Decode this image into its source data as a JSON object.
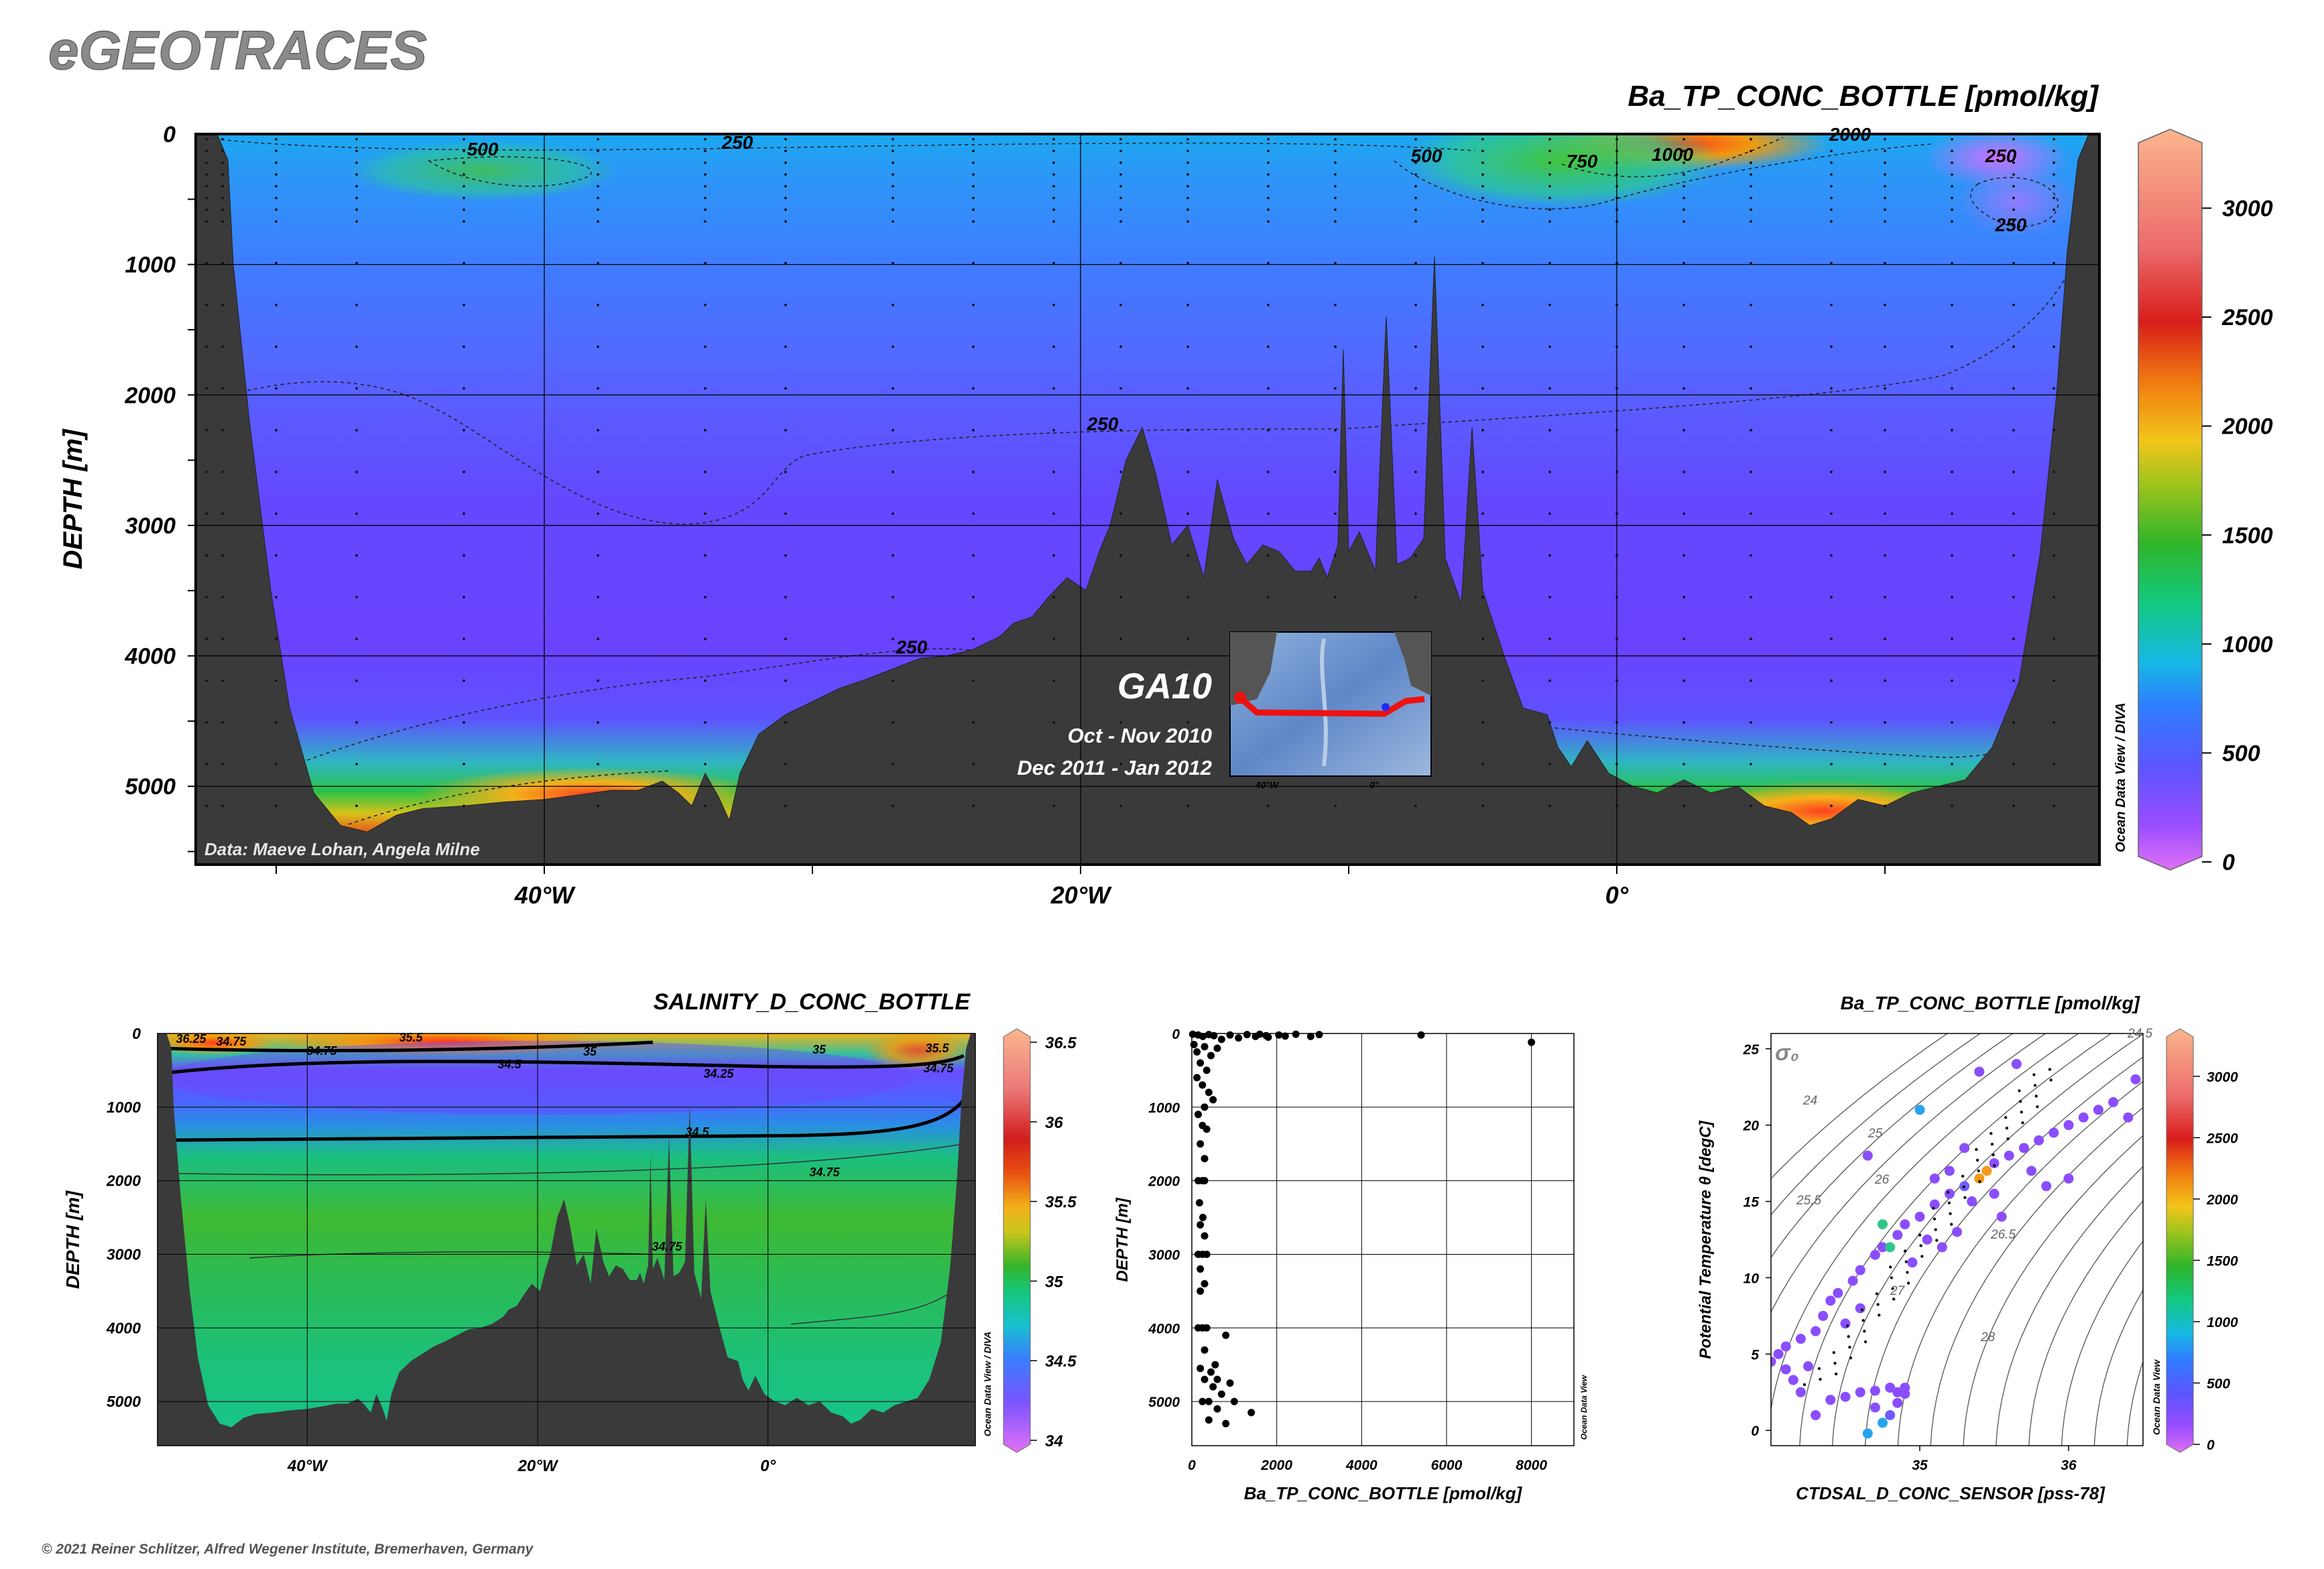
{
  "brand": "eGEOTRACES",
  "copyright": "© 2021 Reiner Schlitzer, Alfred Wegener Institute, Bremerhaven, Germany",
  "colors": {
    "land": "#3a3a3a",
    "background": "#ffffff",
    "grid": "#000000",
    "brand_text": "#8a8a8a",
    "track": "#ee1111"
  },
  "chart_data": [
    {
      "type": "heatmap",
      "title": "Ba_TP_CONC_BOTTLE [pmol/kg]",
      "xlabel": "",
      "ylabel": "DEPTH [m]",
      "x_ticks": [
        "40°W",
        "20°W",
        "0°"
      ],
      "y_ticks": [
        "0",
        "1000",
        "2000",
        "3000",
        "4000",
        "5000"
      ],
      "xlim": [
        -53,
        18
      ],
      "ylim": [
        0,
        5600
      ],
      "grid": true,
      "colorbar": {
        "min": 0,
        "max": 3300,
        "ticks": [
          "0",
          "500",
          "1000",
          "1500",
          "2000",
          "2500",
          "3000"
        ]
      },
      "side_label": "Ocean Data View / DIVA",
      "contour_labels": [
        "500",
        "250",
        "500",
        "750",
        "1000",
        "2000",
        "250",
        "250",
        "250",
        "250"
      ],
      "inset": {
        "cruise": "GA10",
        "dates": [
          "Oct - Nov 2010",
          "Dec 2011 - Jan 2012"
        ],
        "lon_ticks": [
          "40°W",
          "0°"
        ]
      },
      "credit": "Data: Maeve Lohan, Angela Milne"
    },
    {
      "type": "heatmap",
      "title": "SALINITY_D_CONC_BOTTLE",
      "xlabel": "",
      "ylabel": "DEPTH [m]",
      "x_ticks": [
        "40°W",
        "20°W",
        "0°"
      ],
      "y_ticks": [
        "0",
        "1000",
        "2000",
        "3000",
        "4000",
        "5000"
      ],
      "xlim": [
        -53,
        18
      ],
      "ylim": [
        0,
        5600
      ],
      "grid": true,
      "colorbar": {
        "min": 34,
        "max": 36.5,
        "ticks": [
          "34",
          "34.5",
          "35",
          "35.5",
          "36",
          "36.5"
        ]
      },
      "side_label": "Ocean Data View / DIVA",
      "contour_labels": [
        "36.25",
        "34.75",
        "35.5",
        "34.75",
        "35",
        "34.5",
        "34.25",
        "35",
        "35.5",
        "34.75",
        "34.5",
        "34.75",
        "34.75"
      ]
    },
    {
      "type": "scatter",
      "title": "",
      "xlabel": "Ba_TP_CONC_BOTTLE [pmol/kg]",
      "ylabel": "DEPTH [m]",
      "x_ticks": [
        "0",
        "2000",
        "4000",
        "6000",
        "8000"
      ],
      "y_ticks": [
        "0",
        "1000",
        "2000",
        "3000",
        "4000",
        "5000"
      ],
      "xlim": [
        0,
        9000
      ],
      "ylim": [
        0,
        5600
      ],
      "grid": true,
      "side_label": "Ocean Data View",
      "points": [
        {
          "x": 20,
          "y": 10
        },
        {
          "x": 150,
          "y": 20
        },
        {
          "x": 260,
          "y": 40
        },
        {
          "x": 400,
          "y": 15
        },
        {
          "x": 520,
          "y": 30
        },
        {
          "x": 700,
          "y": 80
        },
        {
          "x": 900,
          "y": 20
        },
        {
          "x": 1100,
          "y": 60
        },
        {
          "x": 1300,
          "y": 15
        },
        {
          "x": 1500,
          "y": 40
        },
        {
          "x": 1600,
          "y": 10
        },
        {
          "x": 1750,
          "y": 30
        },
        {
          "x": 1800,
          "y": 50
        },
        {
          "x": 2050,
          "y": 20
        },
        {
          "x": 2200,
          "y": 35
        },
        {
          "x": 2450,
          "y": 10
        },
        {
          "x": 2800,
          "y": 40
        },
        {
          "x": 3000,
          "y": 15
        },
        {
          "x": 5400,
          "y": 20
        },
        {
          "x": 8000,
          "y": 120
        },
        {
          "x": 50,
          "y": 150
        },
        {
          "x": 120,
          "y": 250
        },
        {
          "x": 300,
          "y": 180
        },
        {
          "x": 450,
          "y": 300
        },
        {
          "x": 600,
          "y": 200
        },
        {
          "x": 200,
          "y": 400
        },
        {
          "x": 350,
          "y": 500
        },
        {
          "x": 120,
          "y": 600
        },
        {
          "x": 250,
          "y": 700
        },
        {
          "x": 400,
          "y": 800
        },
        {
          "x": 500,
          "y": 900
        },
        {
          "x": 300,
          "y": 1000
        },
        {
          "x": 150,
          "y": 1100
        },
        {
          "x": 250,
          "y": 1250
        },
        {
          "x": 350,
          "y": 1300
        },
        {
          "x": 200,
          "y": 1500
        },
        {
          "x": 300,
          "y": 1700
        },
        {
          "x": 150,
          "y": 2000
        },
        {
          "x": 250,
          "y": 2000
        },
        {
          "x": 300,
          "y": 2000
        },
        {
          "x": 180,
          "y": 2300
        },
        {
          "x": 260,
          "y": 2500
        },
        {
          "x": 200,
          "y": 2600
        },
        {
          "x": 300,
          "y": 2750
        },
        {
          "x": 150,
          "y": 3000
        },
        {
          "x": 250,
          "y": 3000
        },
        {
          "x": 350,
          "y": 3000
        },
        {
          "x": 200,
          "y": 3200
        },
        {
          "x": 300,
          "y": 3400
        },
        {
          "x": 200,
          "y": 3500
        },
        {
          "x": 150,
          "y": 4000
        },
        {
          "x": 250,
          "y": 4000
        },
        {
          "x": 350,
          "y": 4000
        },
        {
          "x": 800,
          "y": 4100
        },
        {
          "x": 300,
          "y": 4300
        },
        {
          "x": 550,
          "y": 4500
        },
        {
          "x": 200,
          "y": 4550
        },
        {
          "x": 450,
          "y": 4600
        },
        {
          "x": 600,
          "y": 4700
        },
        {
          "x": 300,
          "y": 4700
        },
        {
          "x": 900,
          "y": 4750
        },
        {
          "x": 500,
          "y": 4800
        },
        {
          "x": 700,
          "y": 4900
        },
        {
          "x": 400,
          "y": 5000
        },
        {
          "x": 250,
          "y": 5000
        },
        {
          "x": 1000,
          "y": 5000
        },
        {
          "x": 600,
          "y": 5100
        },
        {
          "x": 1400,
          "y": 5150
        },
        {
          "x": 400,
          "y": 5250
        },
        {
          "x": 800,
          "y": 5300
        }
      ]
    },
    {
      "type": "scatter",
      "title": "Ba_TP_CONC_BOTTLE [pmol/kg]",
      "xlabel": "CTDSAL_D_CONC_SENSOR [pss-78]",
      "ylabel": "Potential Temperature θ [degC]",
      "x_ticks": [
        "35",
        "36"
      ],
      "y_ticks": [
        "0",
        "5",
        "10",
        "15",
        "20",
        "25"
      ],
      "xlim": [
        34.0,
        36.5
      ],
      "ylim": [
        -1,
        26
      ],
      "grid": false,
      "colorbar": {
        "min": 0,
        "max": 3300,
        "ticks": [
          "0",
          "500",
          "1000",
          "1500",
          "2000",
          "2500",
          "3000"
        ]
      },
      "side_label": "Ocean Data View",
      "isopycnal_symbol": "σ₀",
      "isopycnal_labels": [
        "24",
        "24.5",
        "25",
        "25.5",
        "26",
        "26.5",
        "27",
        "28"
      ],
      "points": [
        {
          "x": 34.3,
          "y": 1.0,
          "c": 250
        },
        {
          "x": 34.4,
          "y": 2.0,
          "c": 300
        },
        {
          "x": 34.5,
          "y": 2.2,
          "c": 300
        },
        {
          "x": 34.6,
          "y": 2.5,
          "c": 280
        },
        {
          "x": 34.7,
          "y": 2.6,
          "c": 260
        },
        {
          "x": 34.8,
          "y": 2.8,
          "c": 300
        },
        {
          "x": 34.9,
          "y": 2.4,
          "c": 250
        },
        {
          "x": 34.85,
          "y": 1.8,
          "c": 280
        },
        {
          "x": 34.7,
          "y": 1.5,
          "c": 300
        },
        {
          "x": 34.8,
          "y": 1.0,
          "c": 600
        },
        {
          "x": 34.85,
          "y": 2.5,
          "c": 320
        },
        {
          "x": 34.9,
          "y": 2.8,
          "c": 280
        },
        {
          "x": 34.2,
          "y": 2.5,
          "c": 200
        },
        {
          "x": 34.15,
          "y": 3.3,
          "c": 300
        },
        {
          "x": 34.1,
          "y": 4.0,
          "c": 300
        },
        {
          "x": 34.0,
          "y": 4.5,
          "c": 200
        },
        {
          "x": 34.05,
          "y": 5.0,
          "c": 250
        },
        {
          "x": 34.1,
          "y": 5.5,
          "c": 300
        },
        {
          "x": 34.2,
          "y": 6.0,
          "c": 250
        },
        {
          "x": 34.3,
          "y": 6.5,
          "c": 300
        },
        {
          "x": 34.35,
          "y": 7.5,
          "c": 280
        },
        {
          "x": 34.4,
          "y": 8.5,
          "c": 300
        },
        {
          "x": 34.45,
          "y": 9.0,
          "c": 350
        },
        {
          "x": 34.55,
          "y": 9.8,
          "c": 300
        },
        {
          "x": 34.6,
          "y": 10.5,
          "c": 250
        },
        {
          "x": 34.7,
          "y": 11.5,
          "c": 300
        },
        {
          "x": 34.75,
          "y": 12.0,
          "c": 320
        },
        {
          "x": 34.85,
          "y": 12.8,
          "c": 300
        },
        {
          "x": 34.9,
          "y": 13.5,
          "c": 280
        },
        {
          "x": 35.0,
          "y": 14.0,
          "c": 300
        },
        {
          "x": 35.1,
          "y": 14.8,
          "c": 350
        },
        {
          "x": 35.2,
          "y": 15.5,
          "c": 400
        },
        {
          "x": 35.3,
          "y": 16.0,
          "c": 500
        },
        {
          "x": 35.4,
          "y": 16.5,
          "c": 2100
        },
        {
          "x": 35.45,
          "y": 17.0,
          "c": 1800
        },
        {
          "x": 35.5,
          "y": 17.5,
          "c": 300
        },
        {
          "x": 35.6,
          "y": 18.0,
          "c": 250
        },
        {
          "x": 35.7,
          "y": 18.5,
          "c": 300
        },
        {
          "x": 35.8,
          "y": 19.0,
          "c": 280
        },
        {
          "x": 35.9,
          "y": 19.5,
          "c": 250
        },
        {
          "x": 36.0,
          "y": 20.0,
          "c": 300
        },
        {
          "x": 36.1,
          "y": 20.5,
          "c": 300
        },
        {
          "x": 36.2,
          "y": 21.0,
          "c": 350
        },
        {
          "x": 36.3,
          "y": 21.5,
          "c": 300
        },
        {
          "x": 36.4,
          "y": 20.5,
          "c": 300
        },
        {
          "x": 36.45,
          "y": 23.0,
          "c": 300
        },
        {
          "x": 35.65,
          "y": 24.0,
          "c": 300
        },
        {
          "x": 35.4,
          "y": 23.5,
          "c": 300
        },
        {
          "x": 35.0,
          "y": 21.0,
          "c": 800
        },
        {
          "x": 34.65,
          "y": 18.0,
          "c": 300
        },
        {
          "x": 34.75,
          "y": 13.5,
          "c": 1200
        },
        {
          "x": 34.8,
          "y": 12.0,
          "c": 1100
        },
        {
          "x": 35.05,
          "y": 12.5,
          "c": 300
        },
        {
          "x": 35.25,
          "y": 13.0,
          "c": 250
        },
        {
          "x": 35.55,
          "y": 14.0,
          "c": 300
        },
        {
          "x": 35.85,
          "y": 16.0,
          "c": 350
        },
        {
          "x": 36.0,
          "y": 16.5,
          "c": 300
        },
        {
          "x": 34.95,
          "y": 11.0,
          "c": 280
        },
        {
          "x": 35.15,
          "y": 12.0,
          "c": 300
        },
        {
          "x": 34.5,
          "y": 7.0,
          "c": 250
        },
        {
          "x": 34.6,
          "y": 8.0,
          "c": 300
        },
        {
          "x": 34.25,
          "y": 4.2,
          "c": 300
        },
        {
          "x": 34.65,
          "y": -0.2,
          "c": 1000
        },
        {
          "x": 34.75,
          "y": 0.5,
          "c": 900
        },
        {
          "x": 35.35,
          "y": 15.0,
          "c": 300
        },
        {
          "x": 35.5,
          "y": 15.5,
          "c": 350
        },
        {
          "x": 35.75,
          "y": 17.0,
          "c": 300
        },
        {
          "x": 35.2,
          "y": 17.0,
          "c": 300
        },
        {
          "x": 35.3,
          "y": 18.5,
          "c": 300
        },
        {
          "x": 35.1,
          "y": 16.5,
          "c": 300
        }
      ]
    }
  ]
}
